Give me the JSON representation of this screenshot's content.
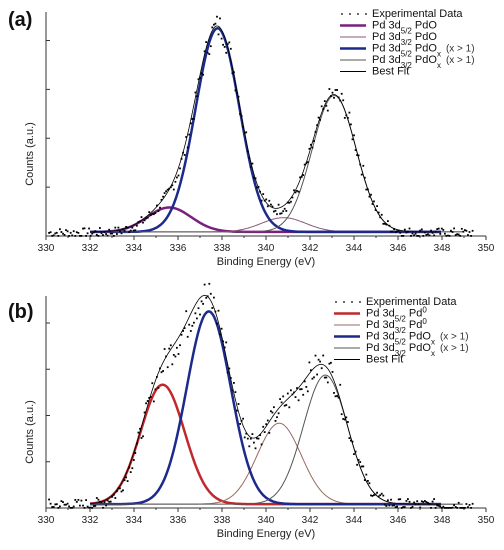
{
  "chart_data": [
    {
      "panel": "(a)",
      "type": "line",
      "xlabel": "Binding Energy (eV)",
      "ylabel": "Counts (a.u.)",
      "xlim": [
        330,
        350
      ],
      "ylim": [
        0,
        1.1
      ],
      "xticks": [
        "330",
        "332",
        "334",
        "336",
        "338",
        "340",
        "342",
        "344",
        "346",
        "348",
        "350"
      ],
      "legend": [
        {
          "label": "Experimental Data",
          "style": "dots",
          "color": "#000000"
        },
        {
          "label": "Pd 3d5/2 PdO",
          "base": "Pd 3d",
          "sub": "5/2",
          "rest": " PdO",
          "style": "line",
          "color": "#7b1f7e",
          "width": 2.5
        },
        {
          "label": "Pd 3d3/2 PdO",
          "base": "Pd 3d",
          "sub": "3/2",
          "rest": " PdO",
          "style": "line",
          "color": "#8a5a7a",
          "width": 1
        },
        {
          "label": "Pd 3d5/2 PdOx (x > 1)",
          "base": "Pd 3d",
          "sub": "5/2",
          "rest": " PdO",
          "sub2": "x",
          "note": "(x > 1)",
          "style": "line",
          "color": "#1c2a8c",
          "width": 2.5
        },
        {
          "label": "Pd 3d3/2 PdOx (x > 1)",
          "base": "Pd 3d",
          "sub": "3/2",
          "rest": " PdO",
          "sub2": "x",
          "note": "(x > 1)",
          "style": "line",
          "color": "#555555",
          "width": 1
        },
        {
          "label": "Best Fit",
          "style": "line",
          "color": "#000000",
          "width": 1
        }
      ],
      "peaks": [
        {
          "name": "Pd 3d5/2 PdO",
          "center": 335.6,
          "height": 0.12,
          "sigma": 1.0,
          "color": "#7b1f7e",
          "width": 2.5
        },
        {
          "name": "Pd 3d3/2 PdO",
          "center": 340.8,
          "height": 0.07,
          "sigma": 1.0,
          "color": "#8a5a7a",
          "width": 1
        },
        {
          "name": "Pd 3d5/2 PdOx",
          "center": 337.8,
          "height": 1.0,
          "sigma": 1.0,
          "color": "#1c2a8c",
          "width": 2.5
        },
        {
          "name": "Pd 3d3/2 PdOx",
          "center": 343.1,
          "height": 0.67,
          "sigma": 1.0,
          "color": "#555555",
          "width": 1
        }
      ],
      "background": 0.02,
      "noise": 0.045
    },
    {
      "panel": "(b)",
      "type": "line",
      "xlabel": "Binding Energy (eV)",
      "ylabel": "Counts (a.u.)",
      "xlim": [
        330,
        350
      ],
      "ylim": [
        0,
        1.1
      ],
      "xticks": [
        "330",
        "332",
        "334",
        "336",
        "338",
        "340",
        "342",
        "344",
        "346",
        "348",
        "350"
      ],
      "legend": [
        {
          "label": "Experimental Data",
          "style": "dots",
          "color": "#000000"
        },
        {
          "label": "Pd 3d5/2 Pd0",
          "base": "Pd 3d",
          "sub": "5/2",
          "rest": " Pd",
          "sup": "0",
          "style": "line",
          "color": "#c0282d",
          "width": 2.5
        },
        {
          "label": "Pd 3d3/2 Pd0",
          "base": "Pd 3d",
          "sub": "3/2",
          "rest": " Pd",
          "sup": "0",
          "style": "line",
          "color": "#9a6a60",
          "width": 1
        },
        {
          "label": "Pd 3d5/2 PdOx (x > 1)",
          "base": "Pd 3d",
          "sub": "5/2",
          "rest": " PdO",
          "sub2": "x",
          "note": "(x > 1)",
          "style": "line",
          "color": "#1c2a8c",
          "width": 2.5
        },
        {
          "label": "Pd 3d3/2 PdOx (x > 1)",
          "base": "Pd 3d",
          "sub": "3/2",
          "rest": " PdO",
          "sub2": "x",
          "note": "(x > 1)",
          "style": "line",
          "color": "#555555",
          "width": 1
        },
        {
          "label": "Best Fit",
          "style": "line",
          "color": "#000000",
          "width": 1
        }
      ],
      "peaks": [
        {
          "name": "Pd 3d5/2 Pd0",
          "center": 335.3,
          "height": 0.62,
          "sigma": 1.0,
          "color": "#c0282d",
          "width": 2.5
        },
        {
          "name": "Pd 3d3/2 Pd0",
          "center": 340.6,
          "height": 0.42,
          "sigma": 1.0,
          "color": "#9a6a60",
          "width": 1
        },
        {
          "name": "Pd 3d5/2 PdOx",
          "center": 337.4,
          "height": 1.0,
          "sigma": 1.0,
          "color": "#1c2a8c",
          "width": 2.5
        },
        {
          "name": "Pd 3d3/2 PdOx",
          "center": 342.7,
          "height": 0.67,
          "sigma": 1.0,
          "color": "#555555",
          "width": 1
        }
      ],
      "background": 0.02,
      "noise": 0.06
    }
  ]
}
